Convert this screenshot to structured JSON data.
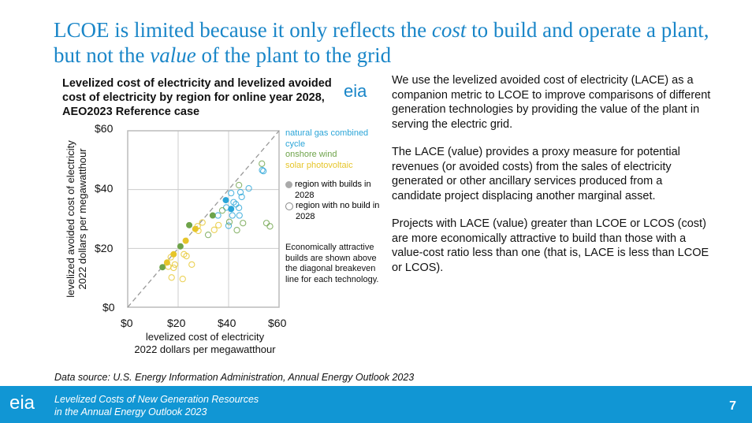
{
  "title": {
    "part1": "LCOE is limited because it only reflects the ",
    "em1": "cost",
    "part2": " to build and operate a plant, but not the ",
    "em2": "value",
    "part3": " of the plant to the grid"
  },
  "logo_text": "eia",
  "chart_data": {
    "type": "scatter",
    "title": "Levelized cost of electricity and levelized avoided cost of electricity by region for online year 2028, AEO2023 Reference case",
    "xlabel": [
      "levelized cost of electricity",
      "2022 dollars per megawatthour"
    ],
    "ylabel": [
      "levelized avoided cost of electricity",
      "2022 dollars per megawatthour"
    ],
    "xlim": [
      0,
      60
    ],
    "ylim": [
      0,
      60
    ],
    "xticks": [
      "$0",
      "$20",
      "$40",
      "$60"
    ],
    "yticks": [
      "$0",
      "$20",
      "$40",
      "$60"
    ],
    "grid": true,
    "breakeven_line": "diagonal dashed y=x",
    "legend": {
      "series": [
        "natural gas combined cycle",
        "onshore wind",
        "solar photovoltaic"
      ],
      "filled": "region with builds in 2028",
      "open": "region with no build in 2028"
    },
    "note": "Economically attractive builds are shown above the diagonal breakeven line for each technology.",
    "series": [
      {
        "name": "natural gas combined cycle",
        "color": "#2ba5d8",
        "filled": [
          [
            38.9,
            36.4
          ],
          [
            41.0,
            33.4
          ]
        ],
        "open": [
          [
            53.8,
            46.3
          ],
          [
            53.3,
            46.6
          ],
          [
            48,
            40.4
          ],
          [
            44.7,
            39.1
          ],
          [
            45.2,
            37.5
          ],
          [
            41,
            38.8
          ],
          [
            42.9,
            35
          ],
          [
            44.1,
            33.8
          ],
          [
            41.5,
            31.2
          ],
          [
            44.3,
            31.2
          ],
          [
            35.8,
            31.2
          ],
          [
            40,
            27.7
          ],
          [
            42,
            35.7
          ],
          [
            39.1,
            33.9
          ]
        ]
      },
      {
        "name": "onshore wind",
        "color": "#6ea34a",
        "filled": [
          [
            33.7,
            31.2
          ],
          [
            24.4,
            27.9
          ],
          [
            20.9,
            20.7
          ],
          [
            13.8,
            13.6
          ]
        ],
        "open": [
          [
            53.2,
            48.8
          ],
          [
            44.1,
            41.5
          ],
          [
            55,
            28.6
          ],
          [
            56.4,
            27.5
          ],
          [
            45.7,
            28.6
          ],
          [
            43.3,
            26.2
          ],
          [
            40.3,
            29
          ],
          [
            31.9,
            24.6
          ],
          [
            37.5,
            32.9
          ]
        ]
      },
      {
        "name": "solar photovoltaic",
        "color": "#e6c52a",
        "filled": [
          [
            26.8,
            26.6
          ],
          [
            23,
            22.6
          ],
          [
            18.2,
            18
          ],
          [
            15.6,
            15.2
          ]
        ],
        "open": [
          [
            29.6,
            28.8
          ],
          [
            27.7,
            27.5
          ],
          [
            36,
            27.9
          ],
          [
            34.3,
            26.3
          ],
          [
            28,
            26
          ],
          [
            22.3,
            18
          ],
          [
            23.3,
            17.4
          ],
          [
            18.7,
            14.5
          ],
          [
            18.2,
            13.4
          ],
          [
            25.4,
            14.5
          ],
          [
            17.4,
            10.1
          ],
          [
            21.8,
            9.6
          ],
          [
            16.1,
            13.8
          ],
          [
            17.1,
            17
          ]
        ]
      }
    ]
  },
  "body": [
    "We use the levelized avoided cost of electricity (LACE) as a companion metric to LCOE to improve comparisons of different generation technologies by providing the value of the plant in serving the electric grid.",
    "The LACE (value) provides a proxy measure for potential revenues (or avoided costs) from the sales of electricity generated or other ancillary services produced from a candidate project displacing another marginal asset.",
    "Projects with LACE (value) greater than LCOE or LCOS (cost) are more economically attractive to build than those with a value-cost ratio less than one (that is, LACE is less than LCOE or LCOS)."
  ],
  "source": "Data source: U.S. Energy Information Administration, Annual Energy Outlook 2023",
  "footer": {
    "line1": "Levelized Costs of New Generation Resources",
    "line2": "in the Annual Energy Outlook 2023",
    "page": "7"
  }
}
